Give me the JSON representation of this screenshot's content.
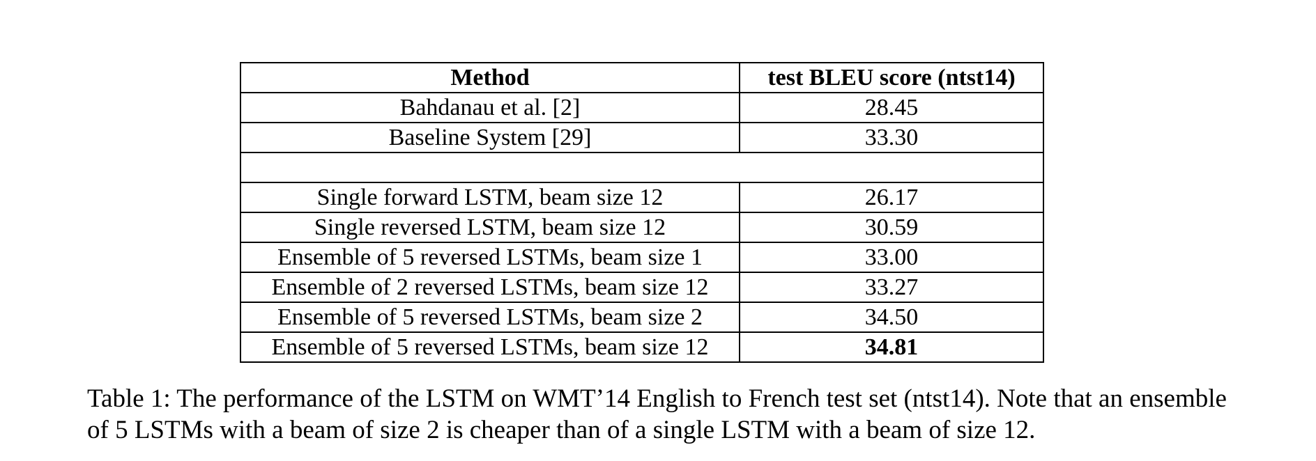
{
  "table": {
    "headers": [
      "Method",
      "test BLEU score (ntst14)"
    ],
    "groups": [
      {
        "rows": [
          {
            "method": "Bahdanau et al. [2]",
            "score": "28.45"
          },
          {
            "method": "Baseline System [29]",
            "score": "33.30"
          }
        ]
      },
      {
        "rows": [
          {
            "method": "Single forward LSTM, beam size 12",
            "score": "26.17"
          },
          {
            "method": "Single reversed LSTM, beam size 12",
            "score": "30.59"
          },
          {
            "method": "Ensemble of 5 reversed LSTMs, beam size 1",
            "score": "33.00"
          },
          {
            "method": "Ensemble of 2 reversed LSTMs, beam size 12",
            "score": "33.27"
          },
          {
            "method": "Ensemble of 5 reversed LSTMs, beam size 2",
            "score": "34.50"
          },
          {
            "method": "Ensemble of 5 reversed LSTMs, beam size 12",
            "score": "34.81",
            "score_bold": true
          }
        ]
      }
    ]
  },
  "caption": "Table 1: The performance of the LSTM on WMT’14 English to French test set (ntst14). Note that an ensemble of 5 LSTMs with a beam of size 2 is cheaper than of a single LSTM with a beam of size 12."
}
